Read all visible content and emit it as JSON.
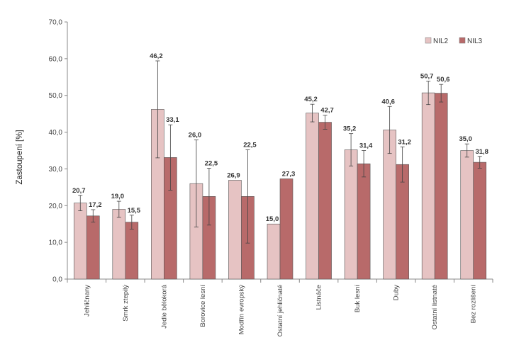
{
  "chart_data": {
    "type": "bar",
    "ylabel": "Zastoupení [%]",
    "ylim": [
      0,
      70
    ],
    "yticks": [
      "0,0",
      "10,0",
      "20,0",
      "30,0",
      "40,0",
      "50,0",
      "60,0",
      "70,0"
    ],
    "grid": false,
    "legend_position": "top-right",
    "categories": [
      "Jehličnany",
      "Smrk ztepilý",
      "Jedle bělokorá",
      "Borovice lesní",
      "Modřín evropský",
      "Ostatní jehličnaté",
      "Listnáče",
      "Buk lesní",
      "Duby",
      "Ostatní listnaté",
      "Bez rozlišení"
    ],
    "series": [
      {
        "name": "NIL2",
        "color": "#e6c3c3",
        "values": [
          20.7,
          19.0,
          46.2,
          26.0,
          26.9,
          15.0,
          45.2,
          35.2,
          40.6,
          50.7,
          35.0
        ],
        "labels": [
          "20,7",
          "19,0",
          "46,2",
          "26,0",
          "26,9",
          "15,0",
          "45,2",
          "35,2",
          "40,6",
          "50,7",
          "35,0"
        ],
        "error_low": [
          18.6,
          16.8,
          33.0,
          14.2,
          26.9,
          15.0,
          42.8,
          30.8,
          34.2,
          47.5,
          33.2
        ],
        "error_high": [
          22.8,
          21.2,
          59.4,
          37.9,
          26.9,
          15.0,
          47.6,
          39.6,
          47.0,
          53.9,
          36.8
        ]
      },
      {
        "name": "NIL3",
        "color": "#b86a6a",
        "values": [
          17.2,
          15.5,
          33.1,
          22.5,
          22.5,
          27.3,
          42.7,
          31.4,
          31.2,
          50.6,
          31.8
        ],
        "labels": [
          "17,2",
          "15,5",
          "33,1",
          "22,5",
          "22,5",
          "27,3",
          "42,7",
          "31,4",
          "31,2",
          "50,6",
          "31,8"
        ],
        "error_low": [
          15.5,
          13.6,
          24.2,
          14.7,
          9.8,
          27.3,
          40.8,
          27.8,
          26.4,
          48.2,
          30.2
        ],
        "error_high": [
          18.9,
          17.4,
          42.0,
          30.2,
          35.2,
          27.3,
          44.6,
          35.0,
          36.0,
          53.0,
          33.4
        ]
      }
    ]
  }
}
